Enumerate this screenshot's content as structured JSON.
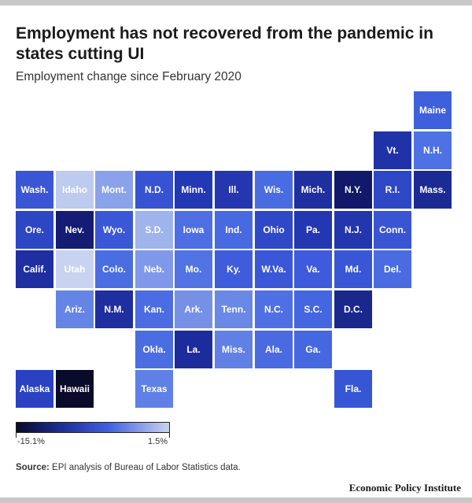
{
  "chart": {
    "title": "Employment has not recovered from the pandemic in states cutting UI",
    "subtitle": "Employment change since February 2020",
    "source_label": "Source:",
    "source_text": "EPI analysis of Bureau of Labor Statistics data.",
    "brand": "Economic Policy Institute"
  },
  "legend": {
    "min_label": "-15.1%",
    "max_label": "1.5%"
  },
  "chart_data": {
    "type": "heatmap",
    "title": "Employment has not recovered from the pandemic in states cutting UI",
    "subtitle": "Employment change since February 2020",
    "value_range": [
      -15.1,
      1.5
    ],
    "color_scale": [
      "#0a0a2a",
      "#1c2f9a",
      "#3f5fe0",
      "#c9d3f0"
    ],
    "tiles": [
      {
        "label": "Maine",
        "row": 0,
        "col": 10,
        "color": "#3f60dc"
      },
      {
        "label": "Vt.",
        "row": 1,
        "col": 9,
        "color": "#2032a8"
      },
      {
        "label": "N.H.",
        "row": 1,
        "col": 10,
        "color": "#4e72e3"
      },
      {
        "label": "Wash.",
        "row": 2,
        "col": 0,
        "color": "#3a55d6"
      },
      {
        "label": "Idaho",
        "row": 2,
        "col": 1,
        "color": "#bccbee"
      },
      {
        "label": "Mont.",
        "row": 2,
        "col": 2,
        "color": "#8aa2ea"
      },
      {
        "label": "N.D.",
        "row": 2,
        "col": 3,
        "color": "#3753d4"
      },
      {
        "label": "Minn.",
        "row": 2,
        "col": 4,
        "color": "#2338b4"
      },
      {
        "label": "Ill.",
        "row": 2,
        "col": 5,
        "color": "#2436b0"
      },
      {
        "label": "Wis.",
        "row": 2,
        "col": 6,
        "color": "#4a6ce2"
      },
      {
        "label": "Mich.",
        "row": 2,
        "col": 7,
        "color": "#1f2fa0"
      },
      {
        "label": "N.Y.",
        "row": 2,
        "col": 8,
        "color": "#12196a"
      },
      {
        "label": "R.I.",
        "row": 2,
        "col": 9,
        "color": "#2e47c6"
      },
      {
        "label": "Mass.",
        "row": 2,
        "col": 10,
        "color": "#1c2a94"
      },
      {
        "label": "Ore.",
        "row": 3,
        "col": 0,
        "color": "#2d46c4"
      },
      {
        "label": "Nev.",
        "row": 3,
        "col": 1,
        "color": "#141c74"
      },
      {
        "label": "Wyo.",
        "row": 3,
        "col": 2,
        "color": "#3a57d8"
      },
      {
        "label": "S.D.",
        "row": 3,
        "col": 3,
        "color": "#9fb3ec"
      },
      {
        "label": "Iowa",
        "row": 3,
        "col": 4,
        "color": "#4d6fe3"
      },
      {
        "label": "Ind.",
        "row": 3,
        "col": 5,
        "color": "#4769e2"
      },
      {
        "label": "Ohio",
        "row": 3,
        "col": 6,
        "color": "#2f48c8"
      },
      {
        "label": "Pa.",
        "row": 3,
        "col": 7,
        "color": "#2337b2"
      },
      {
        "label": "N.J.",
        "row": 3,
        "col": 8,
        "color": "#2236ae"
      },
      {
        "label": "Conn.",
        "row": 3,
        "col": 9,
        "color": "#3a55d4"
      },
      {
        "label": "Calif.",
        "row": 4,
        "col": 0,
        "color": "#1f2fa2"
      },
      {
        "label": "Utah",
        "row": 4,
        "col": 1,
        "color": "#c8d3f0"
      },
      {
        "label": "Colo.",
        "row": 4,
        "col": 2,
        "color": "#4b6de2"
      },
      {
        "label": "Neb.",
        "row": 4,
        "col": 3,
        "color": "#7f98ea"
      },
      {
        "label": "Mo.",
        "row": 4,
        "col": 4,
        "color": "#5273e4"
      },
      {
        "label": "Ky.",
        "row": 4,
        "col": 5,
        "color": "#3e5cdc"
      },
      {
        "label": "W.Va.",
        "row": 4,
        "col": 6,
        "color": "#3a57d8"
      },
      {
        "label": "Va.",
        "row": 4,
        "col": 7,
        "color": "#3d5bdc"
      },
      {
        "label": "Md.",
        "row": 4,
        "col": 8,
        "color": "#3856d6"
      },
      {
        "label": "Del.",
        "row": 4,
        "col": 9,
        "color": "#4a6be2"
      },
      {
        "label": "Ariz.",
        "row": 5,
        "col": 1,
        "color": "#6484e6"
      },
      {
        "label": "N.M.",
        "row": 5,
        "col": 2,
        "color": "#1f2fa0"
      },
      {
        "label": "Kan.",
        "row": 5,
        "col": 3,
        "color": "#4b6ce2"
      },
      {
        "label": "Ark.",
        "row": 5,
        "col": 4,
        "color": "#7690e8"
      },
      {
        "label": "Tenn.",
        "row": 5,
        "col": 5,
        "color": "#6a88e6"
      },
      {
        "label": "N.C.",
        "row": 5,
        "col": 6,
        "color": "#4f70e4"
      },
      {
        "label": "S.C.",
        "row": 5,
        "col": 7,
        "color": "#4466e0"
      },
      {
        "label": "D.C.",
        "row": 5,
        "col": 8,
        "color": "#1a288e"
      },
      {
        "label": "Okla.",
        "row": 6,
        "col": 3,
        "color": "#4b6de2"
      },
      {
        "label": "La.",
        "row": 6,
        "col": 4,
        "color": "#1d2c9c"
      },
      {
        "label": "Miss.",
        "row": 6,
        "col": 5,
        "color": "#6080e6"
      },
      {
        "label": "Ala.",
        "row": 6,
        "col": 6,
        "color": "#4a6ae2"
      },
      {
        "label": "Ga.",
        "row": 6,
        "col": 7,
        "color": "#4568e0"
      },
      {
        "label": "Alaska",
        "row": 7,
        "col": 0,
        "color": "#2a42c2"
      },
      {
        "label": "Hawaii",
        "row": 7,
        "col": 1,
        "color": "#0a0a2a"
      },
      {
        "label": "Texas",
        "row": 7,
        "col": 3,
        "color": "#5f80e6"
      },
      {
        "label": "Fla.",
        "row": 7,
        "col": 8,
        "color": "#3656d6"
      }
    ]
  }
}
